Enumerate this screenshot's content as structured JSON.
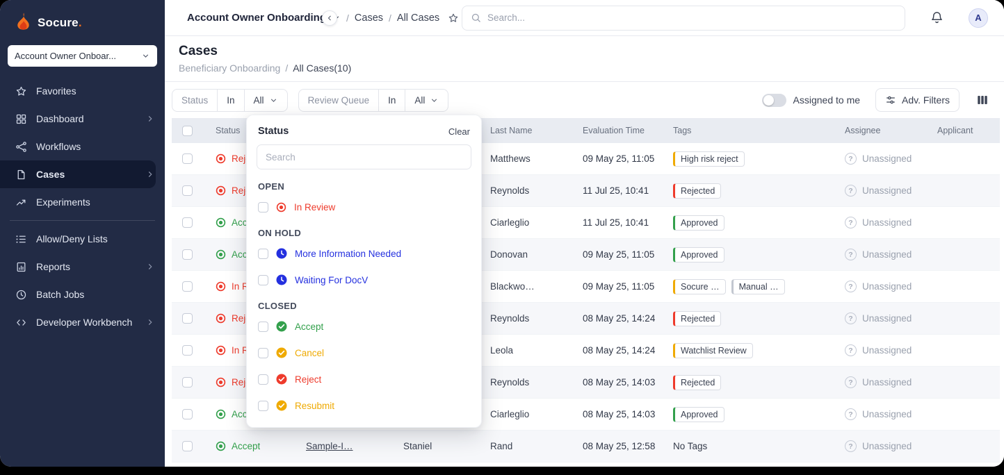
{
  "palette": {
    "red": "#ee3b2c",
    "green": "#33a04c",
    "amber": "#efaa02",
    "blue": "#2430df",
    "gray": "#c2c7d0",
    "brand_orange": "#f3701e",
    "sidebar_bg": "#222b45",
    "sidebar_active_bg": "#121a31"
  },
  "ui": {
    "slash": "/",
    "question_glyph": "?"
  },
  "sidebar": {
    "logo_text": "Socure",
    "logo_dot": ".",
    "workspace_selector": "Account Owner Onboar...",
    "items": [
      {
        "label": "Favorites",
        "icon": "star",
        "chevron": false
      },
      {
        "label": "Dashboard",
        "icon": "grid",
        "chevron": true
      },
      {
        "label": "Workflows",
        "icon": "workflow",
        "chevron": false
      },
      {
        "label": "Cases",
        "icon": "file",
        "chevron": true,
        "active": true
      },
      {
        "label": "Experiments",
        "icon": "trend",
        "chevron": false
      },
      {
        "divider": true
      },
      {
        "label": "Allow/Deny Lists",
        "icon": "list_check",
        "chevron": false
      },
      {
        "label": "Reports",
        "icon": "report",
        "chevron": true
      },
      {
        "label": "Batch Jobs",
        "icon": "clock",
        "chevron": false
      },
      {
        "label": "Developer Workbench",
        "icon": "code",
        "chevron": true
      }
    ]
  },
  "topbar": {
    "workspace_breadcrumb": "Account Owner Onboarding",
    "breadcrumb_items": [
      "Cases",
      "All Cases"
    ],
    "search_placeholder": "Search...",
    "avatar_initial": "A"
  },
  "page_header": {
    "title": "Cases",
    "breadcrumb_parent": "Beneficiary Onboarding",
    "breadcrumb_current": "All Cases(10)"
  },
  "filter_bar": {
    "groups": [
      {
        "field": "Status",
        "operator": "In",
        "value": "All"
      },
      {
        "field": "Review Queue",
        "operator": "In",
        "value": "All"
      }
    ],
    "assigned_to_me_label": "Assigned to me",
    "adv_filters_label": "Adv. Filters"
  },
  "status_dropdown": {
    "title": "Status",
    "clear_label": "Clear",
    "search_placeholder": "Search",
    "sections": [
      {
        "heading": "OPEN",
        "options": [
          {
            "label": "In Review",
            "icon": "record",
            "color": "#ee3b2c",
            "checked": false
          }
        ]
      },
      {
        "heading": "ON HOLD",
        "options": [
          {
            "label": "More Information Needed",
            "icon": "clock",
            "color": "#2430df",
            "checked": false
          },
          {
            "label": "Waiting For DocV",
            "icon": "clock",
            "color": "#2430df",
            "checked": false
          }
        ]
      },
      {
        "heading": "CLOSED",
        "options": [
          {
            "label": "Accept",
            "icon": "check",
            "color": "#33a04c",
            "checked": false
          },
          {
            "label": "Cancel",
            "icon": "check",
            "color": "#efaa02",
            "checked": false
          },
          {
            "label": "Reject",
            "icon": "check",
            "color": "#ee3b2c",
            "checked": false
          },
          {
            "label": "Resubmit",
            "icon": "check",
            "color": "#efaa02",
            "checked": false
          }
        ]
      }
    ]
  },
  "table": {
    "columns": [
      "",
      "Status",
      "",
      "",
      "Last Name",
      "Evaluation Time",
      "Tags",
      "Assignee",
      "Applicant"
    ],
    "rows": [
      {
        "status": "Reject",
        "status_color": "red",
        "case_id": "",
        "first_name": "",
        "last_name": "Matthews",
        "evaluation_time": "09 May 25, 11:05",
        "tags": [
          {
            "label": "High risk reject",
            "color": "amber"
          }
        ],
        "assignee": "Unassigned"
      },
      {
        "status": "Reject",
        "status_color": "red",
        "case_id": "",
        "first_name": "",
        "last_name": "Reynolds",
        "evaluation_time": "11 Jul 25, 10:41",
        "tags": [
          {
            "label": "Rejected",
            "color": "red"
          }
        ],
        "assignee": "Unassigned"
      },
      {
        "status": "Accept",
        "status_color": "green",
        "case_id": "",
        "first_name": "",
        "last_name": "Ciarleglio",
        "evaluation_time": "11 Jul 25, 10:41",
        "tags": [
          {
            "label": "Approved",
            "color": "green"
          }
        ],
        "assignee": "Unassigned"
      },
      {
        "status": "Accept",
        "status_color": "green",
        "case_id": "",
        "first_name": "",
        "last_name": "Donovan",
        "evaluation_time": "09 May 25, 11:05",
        "tags": [
          {
            "label": "Approved",
            "color": "green"
          }
        ],
        "assignee": "Unassigned"
      },
      {
        "status": "In Review",
        "status_color": "red",
        "case_id": "",
        "first_name": "",
        "last_name": "Blackwo…",
        "evaluation_time": "09 May 25, 11:05",
        "tags": [
          {
            "label": "Socure …",
            "color": "amber"
          },
          {
            "label": "Manual …",
            "color": "gray"
          }
        ],
        "assignee": "Unassigned"
      },
      {
        "status": "Reject",
        "status_color": "red",
        "case_id": "",
        "first_name": "",
        "last_name": "Reynolds",
        "evaluation_time": "08 May 25, 14:24",
        "tags": [
          {
            "label": "Rejected",
            "color": "red"
          }
        ],
        "assignee": "Unassigned"
      },
      {
        "status": "In Review",
        "status_color": "red",
        "case_id": "",
        "first_name": "",
        "last_name": "Leola",
        "evaluation_time": "08 May 25, 14:24",
        "tags": [
          {
            "label": "Watchlist Review",
            "color": "amber"
          }
        ],
        "assignee": "Unassigned"
      },
      {
        "status": "Reject",
        "status_color": "red",
        "case_id": "",
        "first_name": "",
        "last_name": "Reynolds",
        "evaluation_time": "08 May 25, 14:03",
        "tags": [
          {
            "label": "Rejected",
            "color": "red"
          }
        ],
        "assignee": "Unassigned"
      },
      {
        "status": "Accept",
        "status_color": "green",
        "case_id": "",
        "first_name": "",
        "last_name": "Ciarleglio",
        "evaluation_time": "08 May 25, 14:03",
        "tags": [
          {
            "label": "Approved",
            "color": "green"
          }
        ],
        "assignee": "Unassigned"
      },
      {
        "status": "Accept",
        "status_color": "green",
        "case_id": "Sample-I…",
        "first_name": "Staniel",
        "last_name": "Rand",
        "evaluation_time": "08 May 25, 12:58",
        "tags": [],
        "no_tags_label": "No Tags",
        "assignee": "Unassigned"
      }
    ]
  }
}
